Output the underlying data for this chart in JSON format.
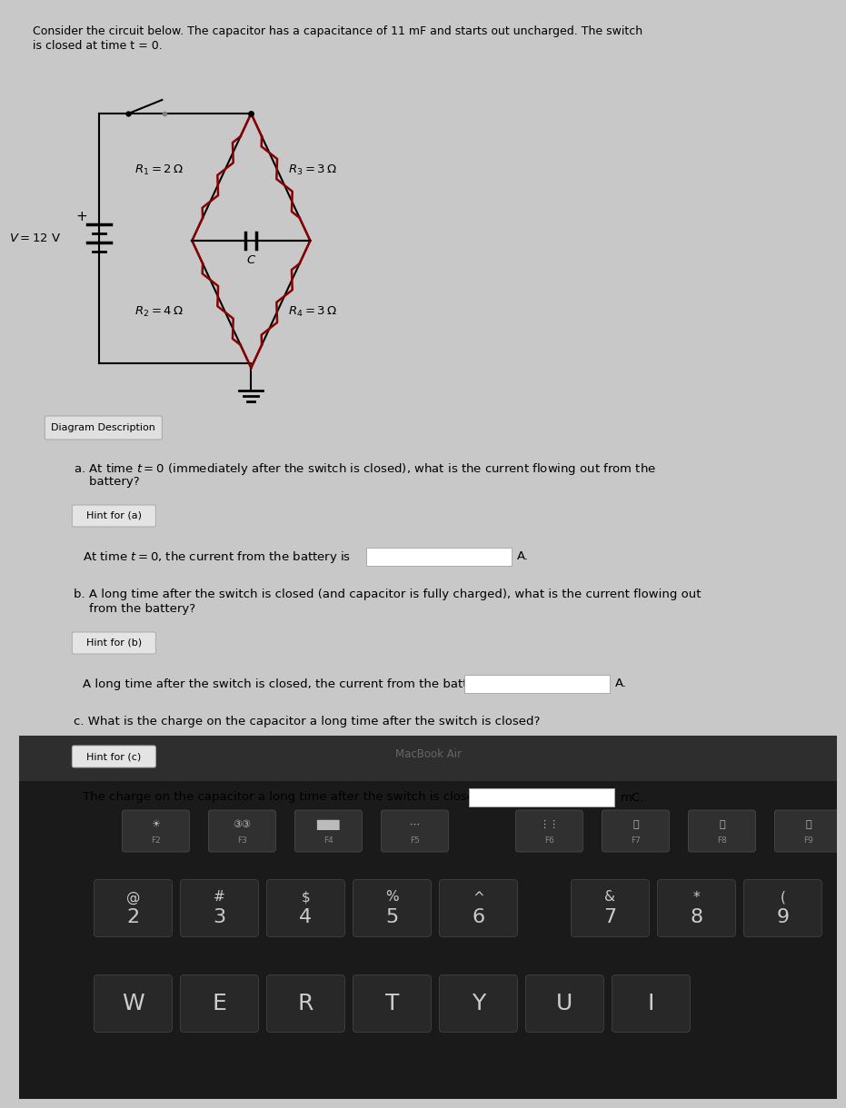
{
  "title_line1": "Consider the circuit below. The capacitor has a capacitance of 11 mF and starts out uncharged. The switch",
  "title_line2": "is closed at time t = 0.",
  "bg_color": "#c8c8c8",
  "dark_bg": "#1a1a1a",
  "bezel_color": "#2e2e2e",
  "key_color": "#2a2a2a",
  "key_edge": "#444444",
  "wire_color": "#000000",
  "resistor_color": "#8b0000",
  "circuit": {
    "R1_label": "$R_1 = 2\\,\\Omega$",
    "R2_label": "$R_2 = 4\\,\\Omega$",
    "R3_label": "$R_3 = 3\\,\\Omega$",
    "R4_label": "$R_4 = 3\\,\\Omega$",
    "V_label": "$V = 12$ V",
    "C_label": "$C$"
  },
  "hint_a": "Hint for (a)",
  "hint_b": "Hint for (b)",
  "hint_c": "Hint for (c)",
  "btn_label": "Diagram Description",
  "qa_text": "a. At time $t = 0$ (immediately after the switch is closed), what is the current flowing out from the",
  "qa_text2": "    battery?",
  "hint_a_ans": "At time $t = 0$, the current from the battery is",
  "hint_a_suf": "A.",
  "qb_text": "b. A long time after the switch is closed (and capacitor is fully charged), what is the current flowing out",
  "qb_text2": "    from the battery?",
  "hint_b_ans": "A long time after the switch is closed, the current from the battery is",
  "hint_b_suf": "A.",
  "qc_text": "c. What is the charge on the capacitor a long time after the switch is closed?",
  "hint_c_ans": "The charge on the capacitor a long time after the switch is closed is",
  "hint_c_suf": "mC.",
  "macbook_label": "MacBook Air",
  "fkey_row": [
    "F2",
    "F3",
    "F4",
    "F5",
    "F6",
    "F7",
    "F8",
    "F9"
  ],
  "num_row_sym": [
    "@",
    "#",
    "$",
    "%",
    "^",
    "&",
    "*",
    "("
  ],
  "num_row_num": [
    "2",
    "3",
    "4",
    "5",
    "6",
    "7",
    "8",
    "9"
  ],
  "letter_row": [
    "W",
    "E",
    "R",
    "T",
    "Y",
    "U",
    "I"
  ]
}
